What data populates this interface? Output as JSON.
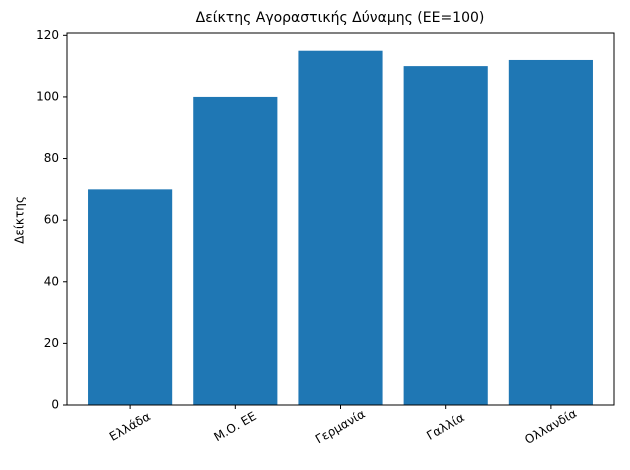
{
  "chart_data": {
    "type": "bar",
    "title": "Δείκτης Αγοραστικής Δύναμης (ΕΕ=100)",
    "y_label": "Δείκτης",
    "categories": [
      "Ελλάδα",
      "Μ.Ο. ΕΕ",
      "Γερμανία",
      "Γαλλία",
      "Ολλανδία"
    ],
    "values": [
      70,
      100,
      115,
      110,
      112
    ],
    "color": "#1f77b4",
    "ylim": [
      0,
      120.75
    ],
    "yticks": [
      0,
      20,
      40,
      60,
      80,
      100,
      120
    ],
    "grid": false
  }
}
